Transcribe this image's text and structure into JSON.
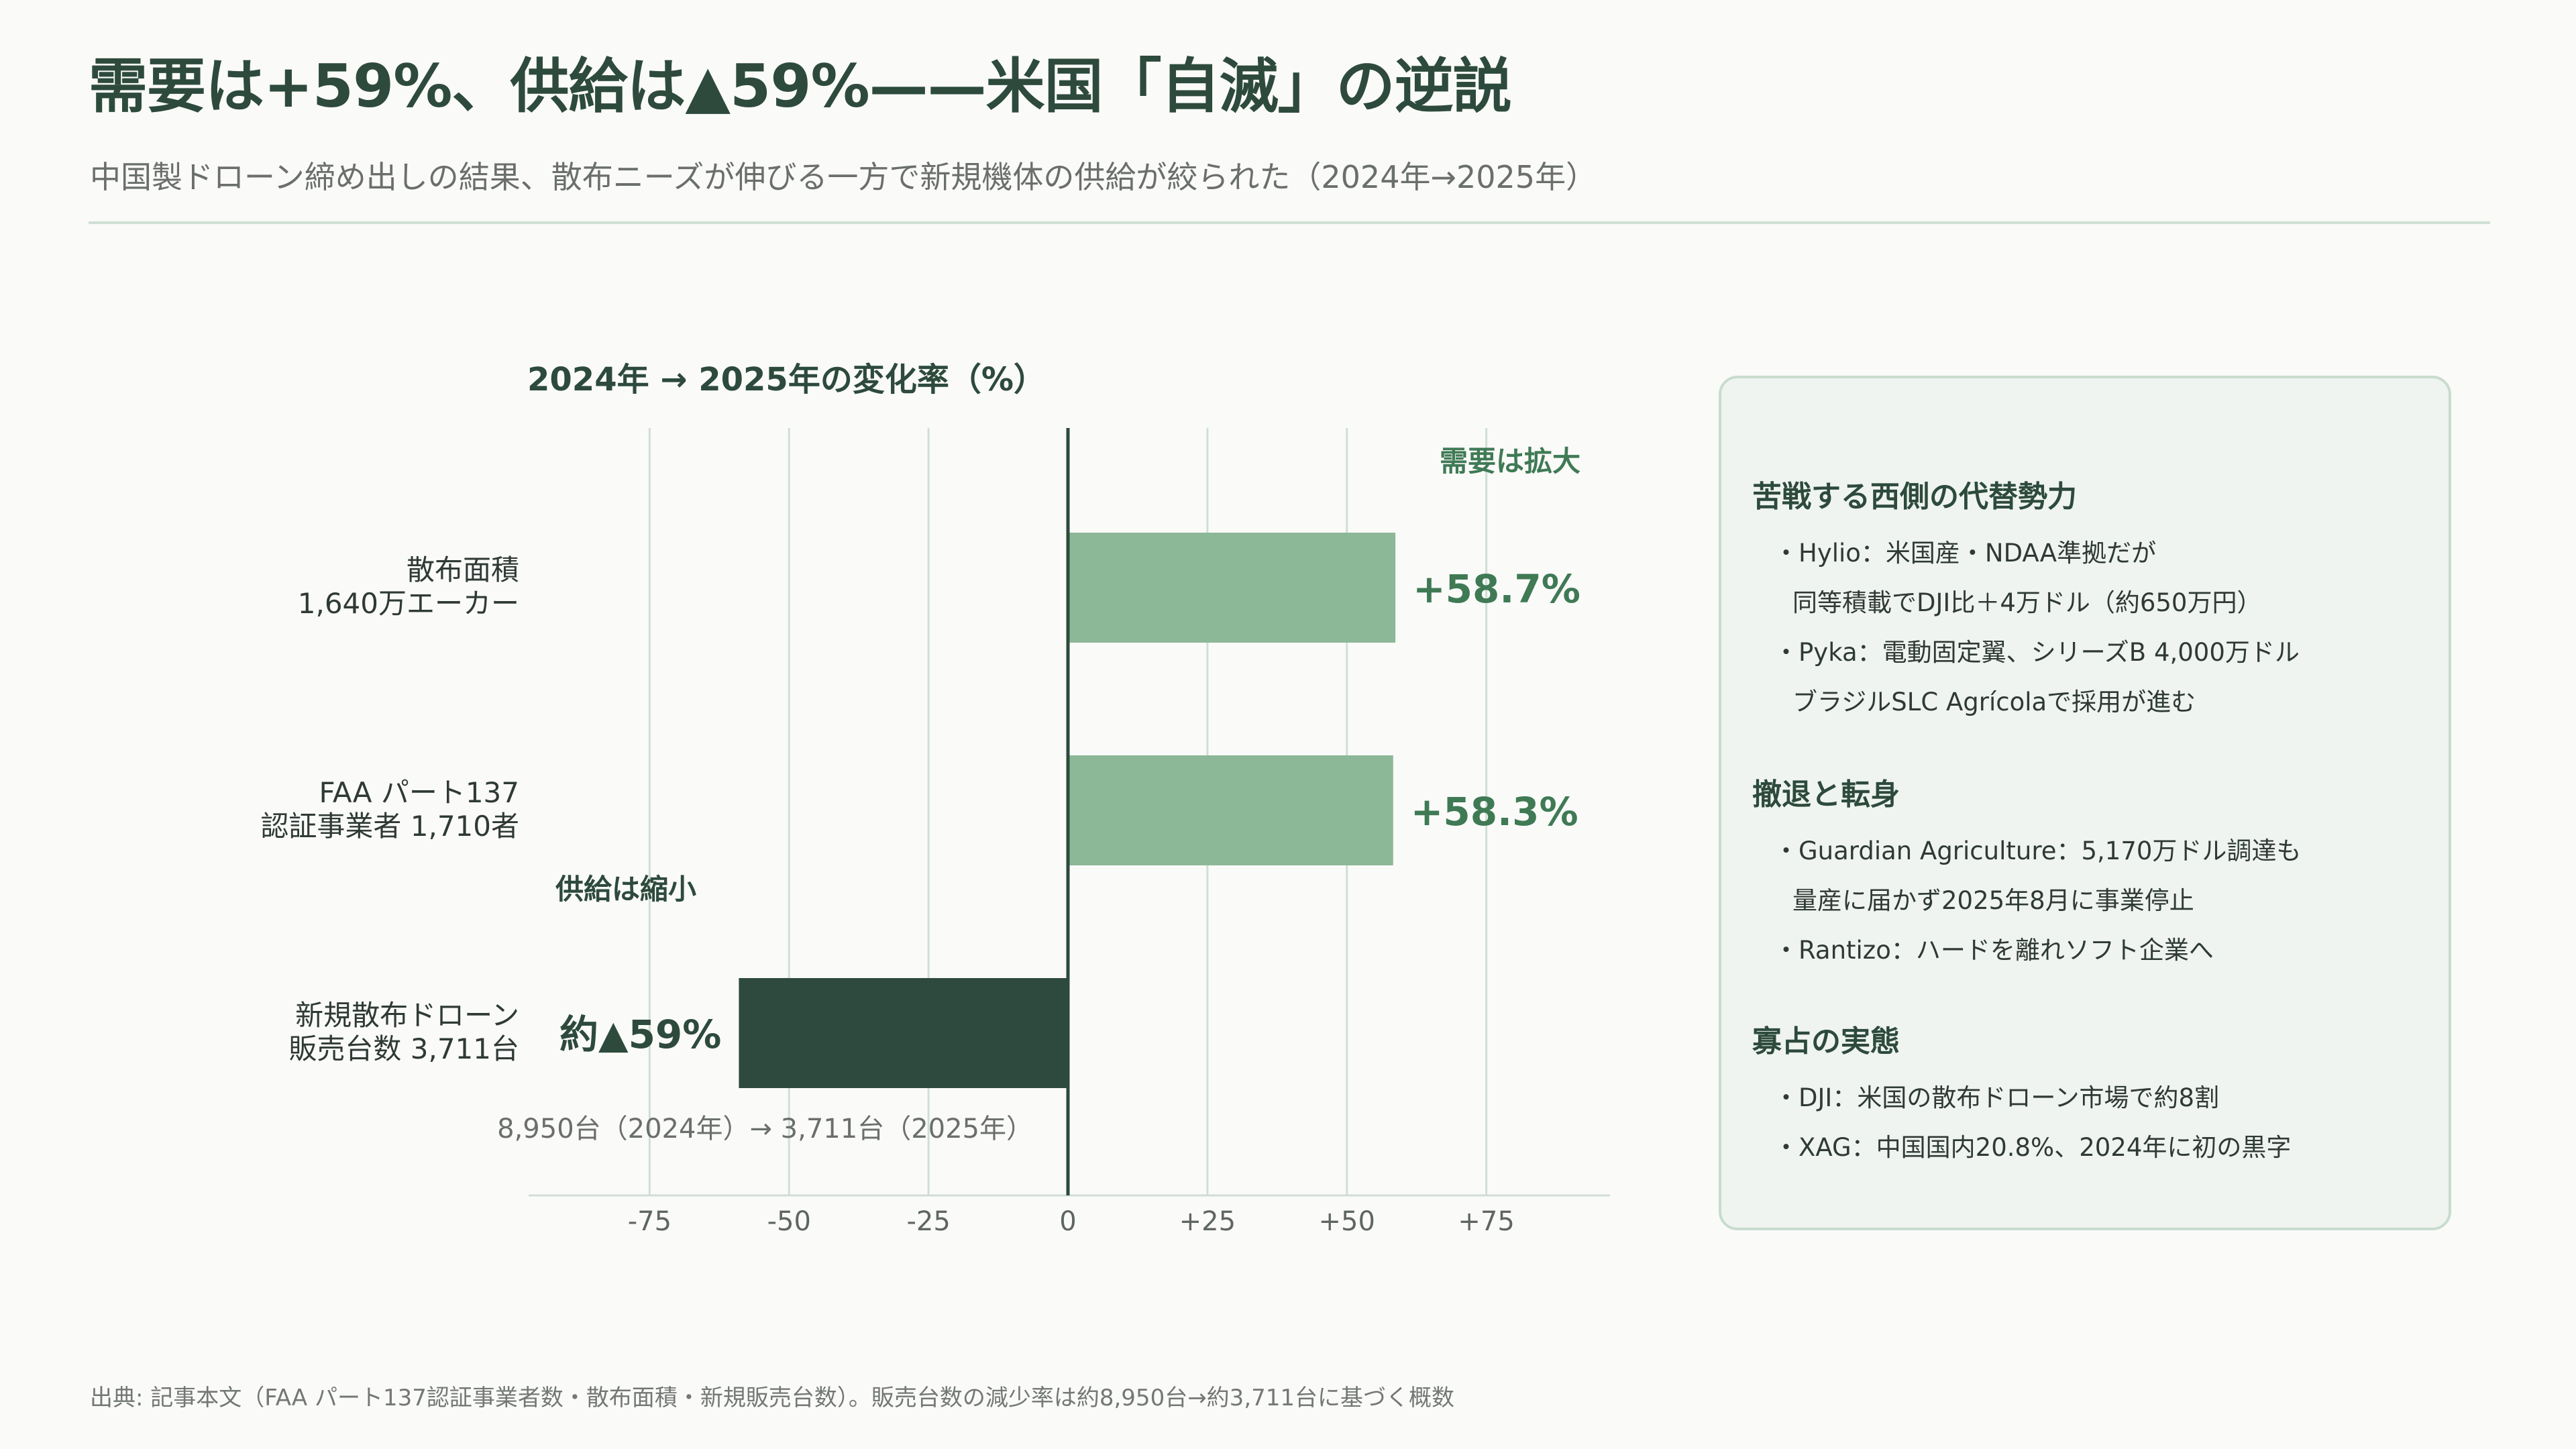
{
  "header": {
    "title": "需要は+59%、供給は▲59%——米国「自滅」の逆説",
    "subtitle": "中国製ドローン締め出しの結果、散布ニーズが伸びる一方で新規機体の供給が絞られた（2024年→2025年）"
  },
  "chart_data": {
    "type": "bar",
    "orientation": "horizontal",
    "title": "2024年 → 2025年の変化率（%）",
    "categories": [
      [
        "散布面積",
        "1,640万エーカー"
      ],
      [
        "FAA パート137",
        "認証事業者 1,710者"
      ],
      [
        "新規散布ドローン",
        "販売台数 3,711台"
      ]
    ],
    "values": [
      58.7,
      58.3,
      -59
    ],
    "value_labels": [
      "+58.7%",
      "+58.3%",
      "約▲59%"
    ],
    "xlim": [
      -97,
      97
    ],
    "xticks": [
      -75,
      -50,
      -25,
      0,
      25,
      50,
      75
    ],
    "xtick_labels": [
      "-75",
      "-50",
      "-25",
      "0",
      "+25",
      "+50",
      "+75"
    ],
    "annotations": {
      "positive": "需要は拡大",
      "negative": "供給は縮小",
      "note": "8,950台（2024年）→ 3,711台（2025年）"
    },
    "colors": {
      "positive": "#8cb898",
      "negative": "#2e4a3e",
      "grid": "#cfdfd4",
      "axis": "#2d4a3d"
    },
    "grid": true
  },
  "panel": {
    "sections": [
      {
        "title": "苦戦する西側の代替勢力",
        "lines": [
          {
            "text": "・Hylio：米国産・NDAA準拠だが",
            "indent": false
          },
          {
            "text": "同等積載でDJI比＋4万ドル（約650万円）",
            "indent": true
          },
          {
            "text": "・Pyka：電動固定翼、シリーズB 4,000万ドル",
            "indent": false
          },
          {
            "text": "ブラジルSLC Agrícolaで採用が進む",
            "indent": true
          }
        ]
      },
      {
        "title": "撤退と転身",
        "lines": [
          {
            "text": "・Guardian Agriculture：5,170万ドル調達も",
            "indent": false
          },
          {
            "text": "量産に届かず2025年8月に事業停止",
            "indent": true
          },
          {
            "text": "・Rantizo：ハードを離れソフト企業へ",
            "indent": false
          }
        ]
      },
      {
        "title": "寡占の実態",
        "lines": [
          {
            "text": "・DJI：米国の散布ドローン市場で約8割",
            "indent": false
          },
          {
            "text": "・XAG：中国国内20.8%、2024年に初の黒字",
            "indent": false
          }
        ]
      }
    ]
  },
  "footer": {
    "source": "出典: 記事本文（FAA パート137認証事業者数・散布面積・新規販売台数）。販売台数の減少率は約8,950台→約3,711台に基づく概数"
  }
}
